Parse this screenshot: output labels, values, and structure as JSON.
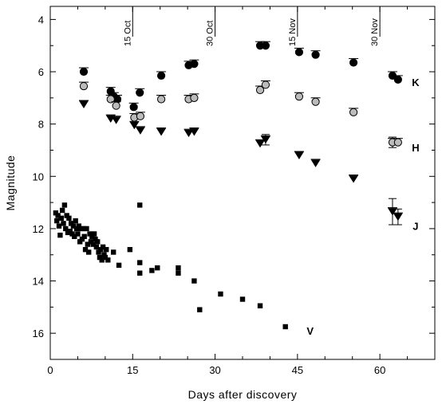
{
  "chart_data": {
    "type": "scatter",
    "xlabel": "Days after discovery",
    "ylabel": "Magnitude",
    "xlim": [
      0,
      70
    ],
    "ylim": [
      17,
      3.5
    ],
    "y_inverted": true,
    "x_ticks": [
      0,
      15,
      30,
      45,
      60
    ],
    "y_ticks": [
      4,
      6,
      8,
      10,
      12,
      14,
      16
    ],
    "date_markers": [
      {
        "day": 15,
        "label": "15 Oct"
      },
      {
        "day": 30,
        "label": "30 Oct"
      },
      {
        "day": 45,
        "label": "15 Nov"
      },
      {
        "day": 60,
        "label": "30 Nov"
      }
    ],
    "series": [
      {
        "name": "K",
        "marker": "circle",
        "color": "#000000",
        "points": [
          {
            "x": 6.1,
            "y": 6.0
          },
          {
            "x": 11.0,
            "y": 6.75
          },
          {
            "x": 11.6,
            "y": 6.95
          },
          {
            "x": 12.2,
            "y": 7.05
          },
          {
            "x": 15.2,
            "y": 7.35
          },
          {
            "x": 16.3,
            "y": 6.8
          },
          {
            "x": 20.2,
            "y": 6.15
          },
          {
            "x": 25.2,
            "y": 5.75
          },
          {
            "x": 26.2,
            "y": 5.7
          },
          {
            "x": 38.2,
            "y": 5.0
          },
          {
            "x": 39.2,
            "y": 5.0
          },
          {
            "x": 45.3,
            "y": 5.25
          },
          {
            "x": 48.3,
            "y": 5.35
          },
          {
            "x": 55.2,
            "y": 5.65
          },
          {
            "x": 62.3,
            "y": 6.15
          },
          {
            "x": 63.3,
            "y": 6.3
          }
        ]
      },
      {
        "name": "H",
        "marker": "circle",
        "color": "#bbbbbb",
        "points": [
          {
            "x": 6.1,
            "y": 6.55
          },
          {
            "x": 11.0,
            "y": 7.05
          },
          {
            "x": 12.0,
            "y": 7.3
          },
          {
            "x": 15.3,
            "y": 7.75
          },
          {
            "x": 16.4,
            "y": 7.7
          },
          {
            "x": 20.2,
            "y": 7.05
          },
          {
            "x": 25.2,
            "y": 7.05
          },
          {
            "x": 26.2,
            "y": 7.0
          },
          {
            "x": 38.2,
            "y": 6.7
          },
          {
            "x": 39.2,
            "y": 6.5
          },
          {
            "x": 45.3,
            "y": 6.95
          },
          {
            "x": 48.3,
            "y": 7.15
          },
          {
            "x": 55.2,
            "y": 7.55
          },
          {
            "x": 62.3,
            "y": 8.7
          },
          {
            "x": 63.3,
            "y": 8.7
          }
        ]
      },
      {
        "name": "J",
        "marker": "triangle-down",
        "color": "#000000",
        "points": [
          {
            "x": 6.1,
            "y": 7.25
          },
          {
            "x": 11.0,
            "y": 7.8
          },
          {
            "x": 12.0,
            "y": 7.85
          },
          {
            "x": 15.3,
            "y": 8.05
          },
          {
            "x": 16.4,
            "y": 8.25
          },
          {
            "x": 20.2,
            "y": 8.3
          },
          {
            "x": 25.2,
            "y": 8.35
          },
          {
            "x": 26.2,
            "y": 8.3
          },
          {
            "x": 38.2,
            "y": 8.75
          },
          {
            "x": 39.2,
            "y": 8.6
          },
          {
            "x": 45.3,
            "y": 9.2
          },
          {
            "x": 48.3,
            "y": 9.5
          },
          {
            "x": 55.2,
            "y": 10.1
          },
          {
            "x": 62.3,
            "y": 11.35
          },
          {
            "x": 63.3,
            "y": 11.55
          }
        ]
      },
      {
        "name": "V",
        "marker": "square",
        "color": "#000000",
        "points": [
          {
            "x": 1.0,
            "y": 11.4
          },
          {
            "x": 1.2,
            "y": 11.7
          },
          {
            "x": 1.4,
            "y": 11.5
          },
          {
            "x": 1.6,
            "y": 11.9
          },
          {
            "x": 1.8,
            "y": 12.25
          },
          {
            "x": 2.0,
            "y": 11.6
          },
          {
            "x": 2.2,
            "y": 11.3
          },
          {
            "x": 2.4,
            "y": 11.8
          },
          {
            "x": 2.6,
            "y": 11.1
          },
          {
            "x": 2.8,
            "y": 12.0
          },
          {
            "x": 3.0,
            "y": 11.5
          },
          {
            "x": 3.2,
            "y": 12.15
          },
          {
            "x": 3.4,
            "y": 11.6
          },
          {
            "x": 3.6,
            "y": 12.1
          },
          {
            "x": 3.8,
            "y": 11.8
          },
          {
            "x": 4.0,
            "y": 12.2
          },
          {
            "x": 4.2,
            "y": 11.9
          },
          {
            "x": 4.4,
            "y": 12.3
          },
          {
            "x": 4.6,
            "y": 11.7
          },
          {
            "x": 4.8,
            "y": 12.0
          },
          {
            "x": 5.0,
            "y": 12.2
          },
          {
            "x": 5.2,
            "y": 11.9
          },
          {
            "x": 5.4,
            "y": 12.5
          },
          {
            "x": 5.6,
            "y": 12.0
          },
          {
            "x": 5.8,
            "y": 12.4
          },
          {
            "x": 6.0,
            "y": 12.0
          },
          {
            "x": 6.2,
            "y": 12.3
          },
          {
            "x": 6.4,
            "y": 12.8
          },
          {
            "x": 6.6,
            "y": 12.0
          },
          {
            "x": 6.8,
            "y": 12.6
          },
          {
            "x": 7.0,
            "y": 12.9
          },
          {
            "x": 7.2,
            "y": 12.2
          },
          {
            "x": 7.4,
            "y": 12.5
          },
          {
            "x": 7.6,
            "y": 12.3
          },
          {
            "x": 7.8,
            "y": 12.6
          },
          {
            "x": 8.0,
            "y": 12.2
          },
          {
            "x": 8.2,
            "y": 12.4
          },
          {
            "x": 8.4,
            "y": 12.7
          },
          {
            "x": 8.6,
            "y": 12.5
          },
          {
            "x": 8.8,
            "y": 12.9
          },
          {
            "x": 9.0,
            "y": 13.1
          },
          {
            "x": 9.2,
            "y": 12.8
          },
          {
            "x": 9.4,
            "y": 13.2
          },
          {
            "x": 9.6,
            "y": 12.7
          },
          {
            "x": 9.8,
            "y": 13.0
          },
          {
            "x": 10.0,
            "y": 13.1
          },
          {
            "x": 10.2,
            "y": 12.8
          },
          {
            "x": 10.5,
            "y": 13.2
          },
          {
            "x": 11.5,
            "y": 12.9
          },
          {
            "x": 12.5,
            "y": 13.4
          },
          {
            "x": 14.5,
            "y": 12.8
          },
          {
            "x": 16.3,
            "y": 11.1
          },
          {
            "x": 16.3,
            "y": 13.3
          },
          {
            "x": 16.3,
            "y": 13.7
          },
          {
            "x": 18.5,
            "y": 13.6
          },
          {
            "x": 19.5,
            "y": 13.5
          },
          {
            "x": 23.3,
            "y": 13.5
          },
          {
            "x": 23.3,
            "y": 13.7
          },
          {
            "x": 26.2,
            "y": 14.0
          },
          {
            "x": 27.2,
            "y": 15.1
          },
          {
            "x": 31.0,
            "y": 14.5
          },
          {
            "x": 35.0,
            "y": 14.7
          },
          {
            "x": 38.2,
            "y": 14.95
          },
          {
            "x": 42.8,
            "y": 15.75
          }
        ]
      }
    ],
    "band_labels": [
      {
        "text": "K",
        "x": 66.5,
        "y": 6.4
      },
      {
        "text": "H",
        "x": 66.5,
        "y": 8.9
      },
      {
        "text": "J",
        "x": 66.5,
        "y": 11.9
      },
      {
        "text": "V",
        "x": 47.3,
        "y": 15.9
      }
    ],
    "error_bars": [
      {
        "series": "J",
        "x": 62.3,
        "y": 11.35,
        "err": 0.5
      },
      {
        "series": "J",
        "x": 63.3,
        "y": 11.55,
        "err": 0.3
      },
      {
        "series": "J",
        "x": 39.2,
        "y": 8.6,
        "err": 0.2
      },
      {
        "series": "H",
        "x": 62.3,
        "y": 8.7,
        "err": 0.2
      }
    ]
  }
}
